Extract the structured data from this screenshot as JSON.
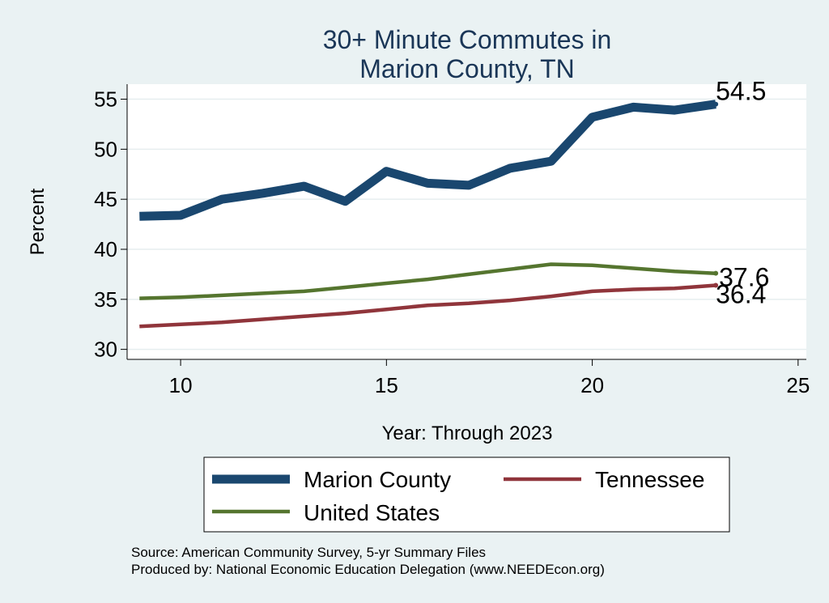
{
  "chart_data": {
    "type": "line",
    "title": [
      "30+ Minute Commutes in",
      "Marion County, TN"
    ],
    "xlabel": "Year: Through 2023",
    "ylabel": "Percent",
    "xlim": [
      8.7,
      25.2
    ],
    "ylim": [
      29,
      56.5
    ],
    "xticks": [
      10,
      15,
      20,
      25
    ],
    "yticks": [
      30,
      35,
      40,
      45,
      50,
      55
    ],
    "grid": true,
    "legend_position": "bottom",
    "x": [
      9,
      10,
      11,
      12,
      13,
      14,
      15,
      16,
      17,
      18,
      19,
      20,
      21,
      22,
      23
    ],
    "series": [
      {
        "name": "Marion County",
        "color": "#1a476f",
        "values": [
          43.3,
          43.4,
          45.0,
          45.6,
          46.3,
          44.8,
          47.8,
          46.6,
          46.4,
          48.1,
          48.8,
          53.2,
          54.2,
          53.9,
          54.5
        ],
        "end_label": "54.5"
      },
      {
        "name": "Tennessee",
        "color": "#90353b",
        "values": [
          32.3,
          32.5,
          32.7,
          33.0,
          33.3,
          33.6,
          34.0,
          34.4,
          34.6,
          34.9,
          35.3,
          35.8,
          36.0,
          36.1,
          36.4
        ],
        "end_label": "36.4"
      },
      {
        "name": "United States",
        "color": "#55752f",
        "values": [
          35.1,
          35.2,
          35.4,
          35.6,
          35.8,
          36.2,
          36.6,
          37.0,
          37.5,
          38.0,
          38.5,
          38.4,
          38.1,
          37.8,
          37.6
        ],
        "end_label": "37.6"
      }
    ],
    "source": [
      "Source: American Community Survey, 5-yr Summary Files",
      "Produced by: National Economic Education Delegation (www.NEEDEcon.org)"
    ]
  }
}
